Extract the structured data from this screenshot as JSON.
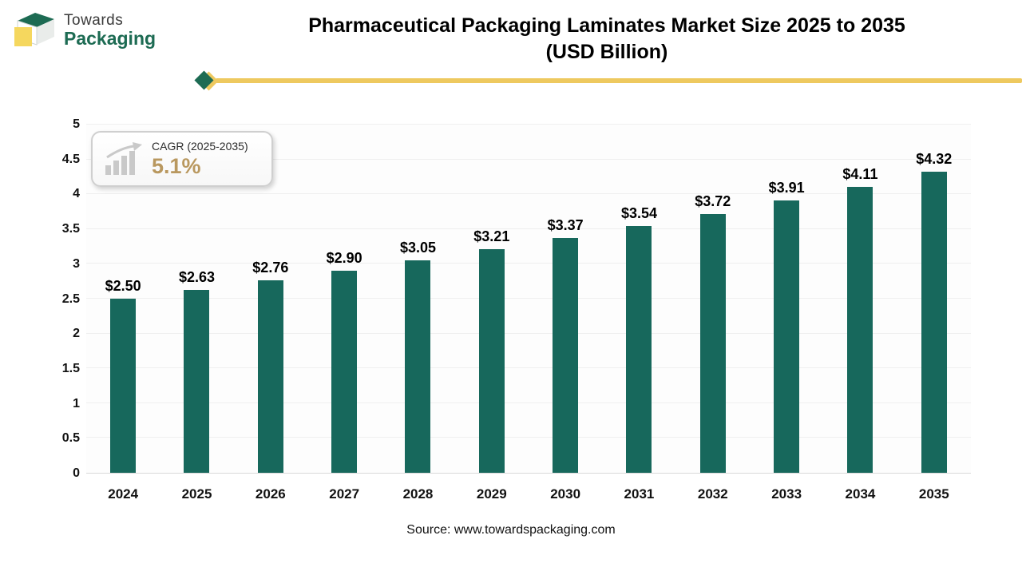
{
  "header": {
    "logo_top": "Towards",
    "logo_bottom": "Packaging",
    "title_line1": "Pharmaceutical Packaging Laminates Market Size 2025 to 2035",
    "title_line2": "(USD Billion)"
  },
  "cagr_badge": {
    "label": "CAGR (2025-2035)",
    "value": "5.1%"
  },
  "chart_data": {
    "type": "bar",
    "title": "Pharmaceutical Packaging Laminates Market Size 2025 to 2035 (USD Billion)",
    "categories": [
      "2024",
      "2025",
      "2026",
      "2027",
      "2028",
      "2029",
      "2030",
      "2031",
      "2032",
      "2033",
      "2034",
      "2035"
    ],
    "values": [
      2.5,
      2.63,
      2.76,
      2.9,
      3.05,
      3.21,
      3.37,
      3.54,
      3.72,
      3.91,
      4.11,
      4.32
    ],
    "labels": [
      "$2.50",
      "$2.63",
      "$2.76",
      "$2.90",
      "$3.05",
      "$3.21",
      "$3.37",
      "$3.54",
      "$3.72",
      "$3.91",
      "$4.11",
      "$4.32"
    ],
    "xlabel": "",
    "ylabel": "",
    "ylim": [
      0,
      5
    ],
    "yticks": [
      0,
      0.5,
      1,
      1.5,
      2,
      2.5,
      3,
      3.5,
      4,
      4.5,
      5
    ],
    "grid": true,
    "legend_position": "none",
    "bar_color": "#17685c"
  },
  "footer": {
    "source": "Source: www.towardspackaging.com"
  }
}
